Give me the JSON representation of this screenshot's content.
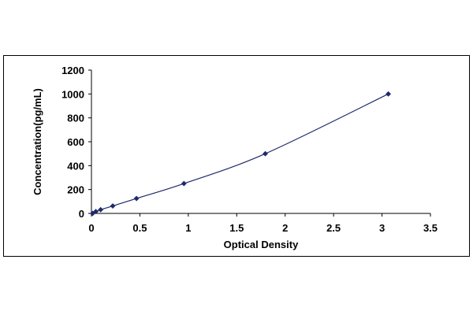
{
  "chart_data": {
    "type": "scatter",
    "title": "",
    "xlabel": "Optical Density",
    "ylabel": "Concentration(pg/mL)",
    "xlim": [
      0,
      3.5
    ],
    "ylim": [
      0,
      1200
    ],
    "x_ticks": [
      "0",
      "0.5",
      "1",
      "1.5",
      "2",
      "2.5",
      "3",
      "3.5"
    ],
    "y_ticks": [
      "0",
      "200",
      "400",
      "600",
      "800",
      "1000",
      "1200"
    ],
    "grid": false,
    "legend": "none",
    "marker": "diamond",
    "series": [
      {
        "color": "#1f2a6b",
        "x": [
          0.012,
          0.045,
          0.095,
          0.22,
          0.465,
          0.955,
          1.795,
          3.065
        ],
        "y": [
          0,
          15.6,
          31.2,
          62.5,
          125,
          250,
          500,
          1000
        ]
      }
    ],
    "trendline": {
      "type": "smooth",
      "color": "#1f2a6b"
    }
  }
}
